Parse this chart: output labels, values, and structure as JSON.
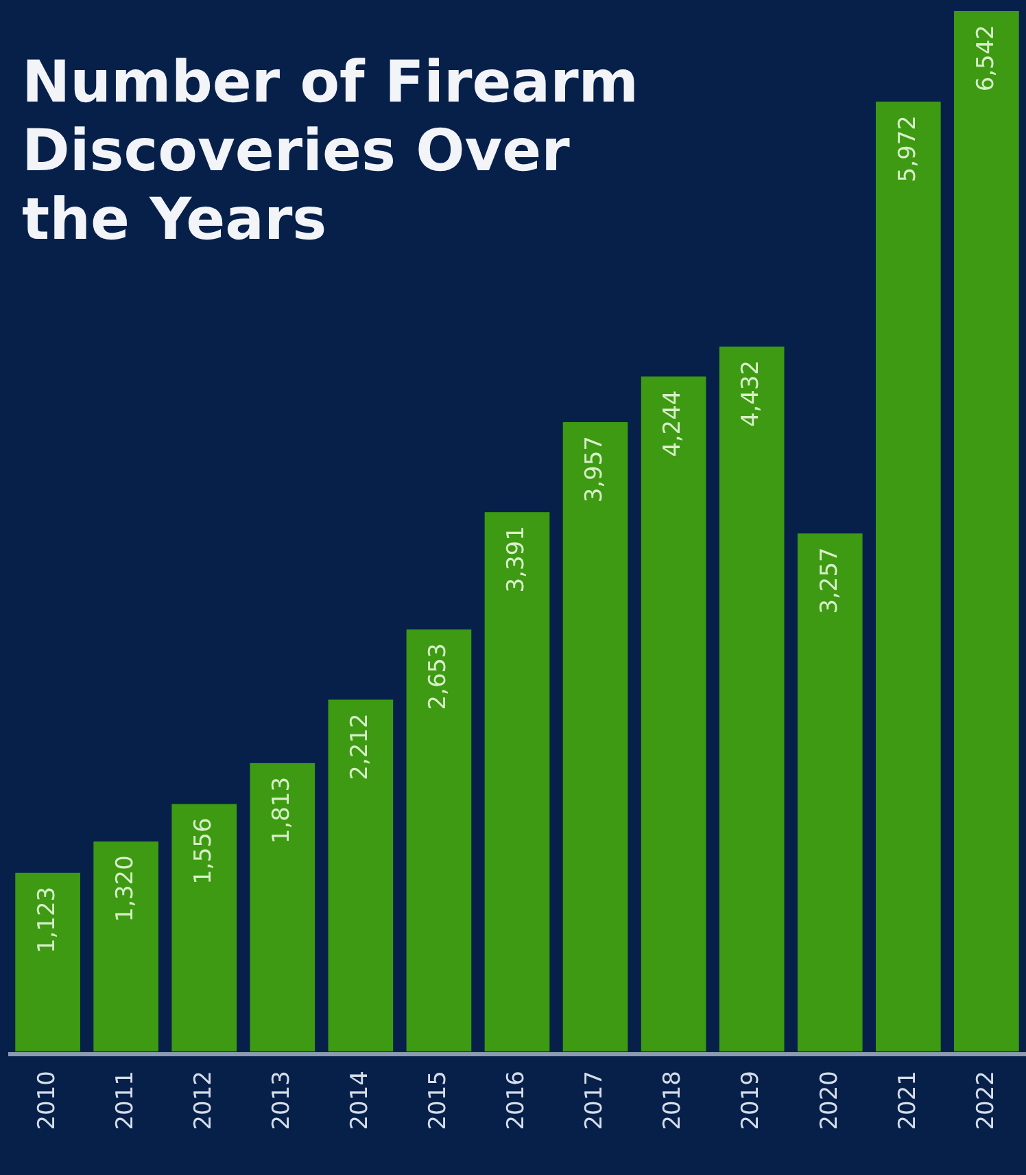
{
  "chart_data": {
    "type": "bar",
    "title": "Number of Firearm Discoveries Over the Years",
    "categories": [
      "2010",
      "2011",
      "2012",
      "2013",
      "2014",
      "2015",
      "2016",
      "2017",
      "2018",
      "2019",
      "2020",
      "2021",
      "2022"
    ],
    "values": [
      1123,
      1320,
      1556,
      1813,
      2212,
      2653,
      3391,
      3957,
      4244,
      4432,
      3257,
      5972,
      6542
    ],
    "value_labels": [
      "1,123",
      "1,320",
      "1,556",
      "1,813",
      "2,212",
      "2,653",
      "3,391",
      "3,957",
      "4,244",
      "4,432",
      "3,257",
      "5,972",
      "6,542"
    ],
    "color": "#3d9a12"
  }
}
